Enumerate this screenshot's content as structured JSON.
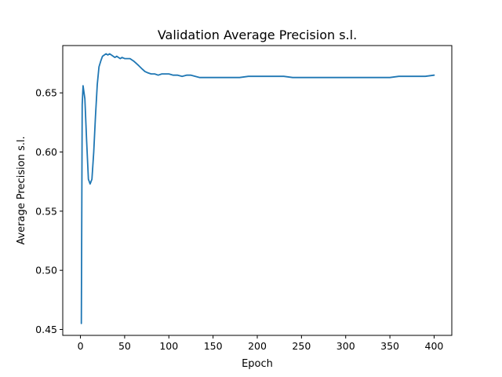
{
  "chart_data": {
    "type": "line",
    "title": "Validation Average Precision s.l.",
    "xlabel": "Epoch",
    "ylabel": "Average Precision s.l.",
    "xlim": [
      -20,
      420
    ],
    "ylim": [
      0.445,
      0.69
    ],
    "xticks": [
      0,
      50,
      100,
      150,
      200,
      250,
      300,
      350,
      400
    ],
    "xtick_labels": [
      "0",
      "50",
      "100",
      "150",
      "200",
      "250",
      "300",
      "350",
      "400"
    ],
    "yticks": [
      0.45,
      0.5,
      0.55,
      0.6,
      0.65
    ],
    "ytick_labels": [
      "0.45",
      "0.50",
      "0.55",
      "0.60",
      "0.65"
    ],
    "grid": false,
    "series": [
      {
        "color": "#1f77b4",
        "x": [
          1,
          2,
          3,
          5,
          7,
          9,
          11,
          13,
          15,
          17,
          19,
          21,
          23,
          25,
          27,
          29,
          31,
          33,
          35,
          37,
          39,
          41,
          43,
          45,
          47,
          50,
          53,
          56,
          60,
          63,
          66,
          70,
          73,
          76,
          80,
          84,
          88,
          92,
          96,
          100,
          105,
          110,
          115,
          120,
          125,
          130,
          135,
          140,
          145,
          150,
          160,
          170,
          180,
          190,
          200,
          210,
          220,
          230,
          240,
          250,
          260,
          270,
          280,
          290,
          300,
          310,
          320,
          330,
          340,
          350,
          360,
          370,
          380,
          390,
          400
        ],
        "y": [
          0.455,
          0.64,
          0.656,
          0.645,
          0.61,
          0.577,
          0.573,
          0.577,
          0.6,
          0.63,
          0.657,
          0.672,
          0.677,
          0.681,
          0.682,
          0.683,
          0.682,
          0.683,
          0.682,
          0.681,
          0.68,
          0.681,
          0.68,
          0.679,
          0.68,
          0.679,
          0.679,
          0.679,
          0.677,
          0.675,
          0.673,
          0.67,
          0.668,
          0.667,
          0.666,
          0.666,
          0.665,
          0.666,
          0.666,
          0.666,
          0.665,
          0.665,
          0.664,
          0.665,
          0.665,
          0.664,
          0.663,
          0.663,
          0.663,
          0.663,
          0.663,
          0.663,
          0.663,
          0.664,
          0.664,
          0.664,
          0.664,
          0.664,
          0.663,
          0.663,
          0.663,
          0.663,
          0.663,
          0.663,
          0.663,
          0.663,
          0.663,
          0.663,
          0.663,
          0.663,
          0.664,
          0.664,
          0.664,
          0.664,
          0.665
        ]
      }
    ]
  }
}
